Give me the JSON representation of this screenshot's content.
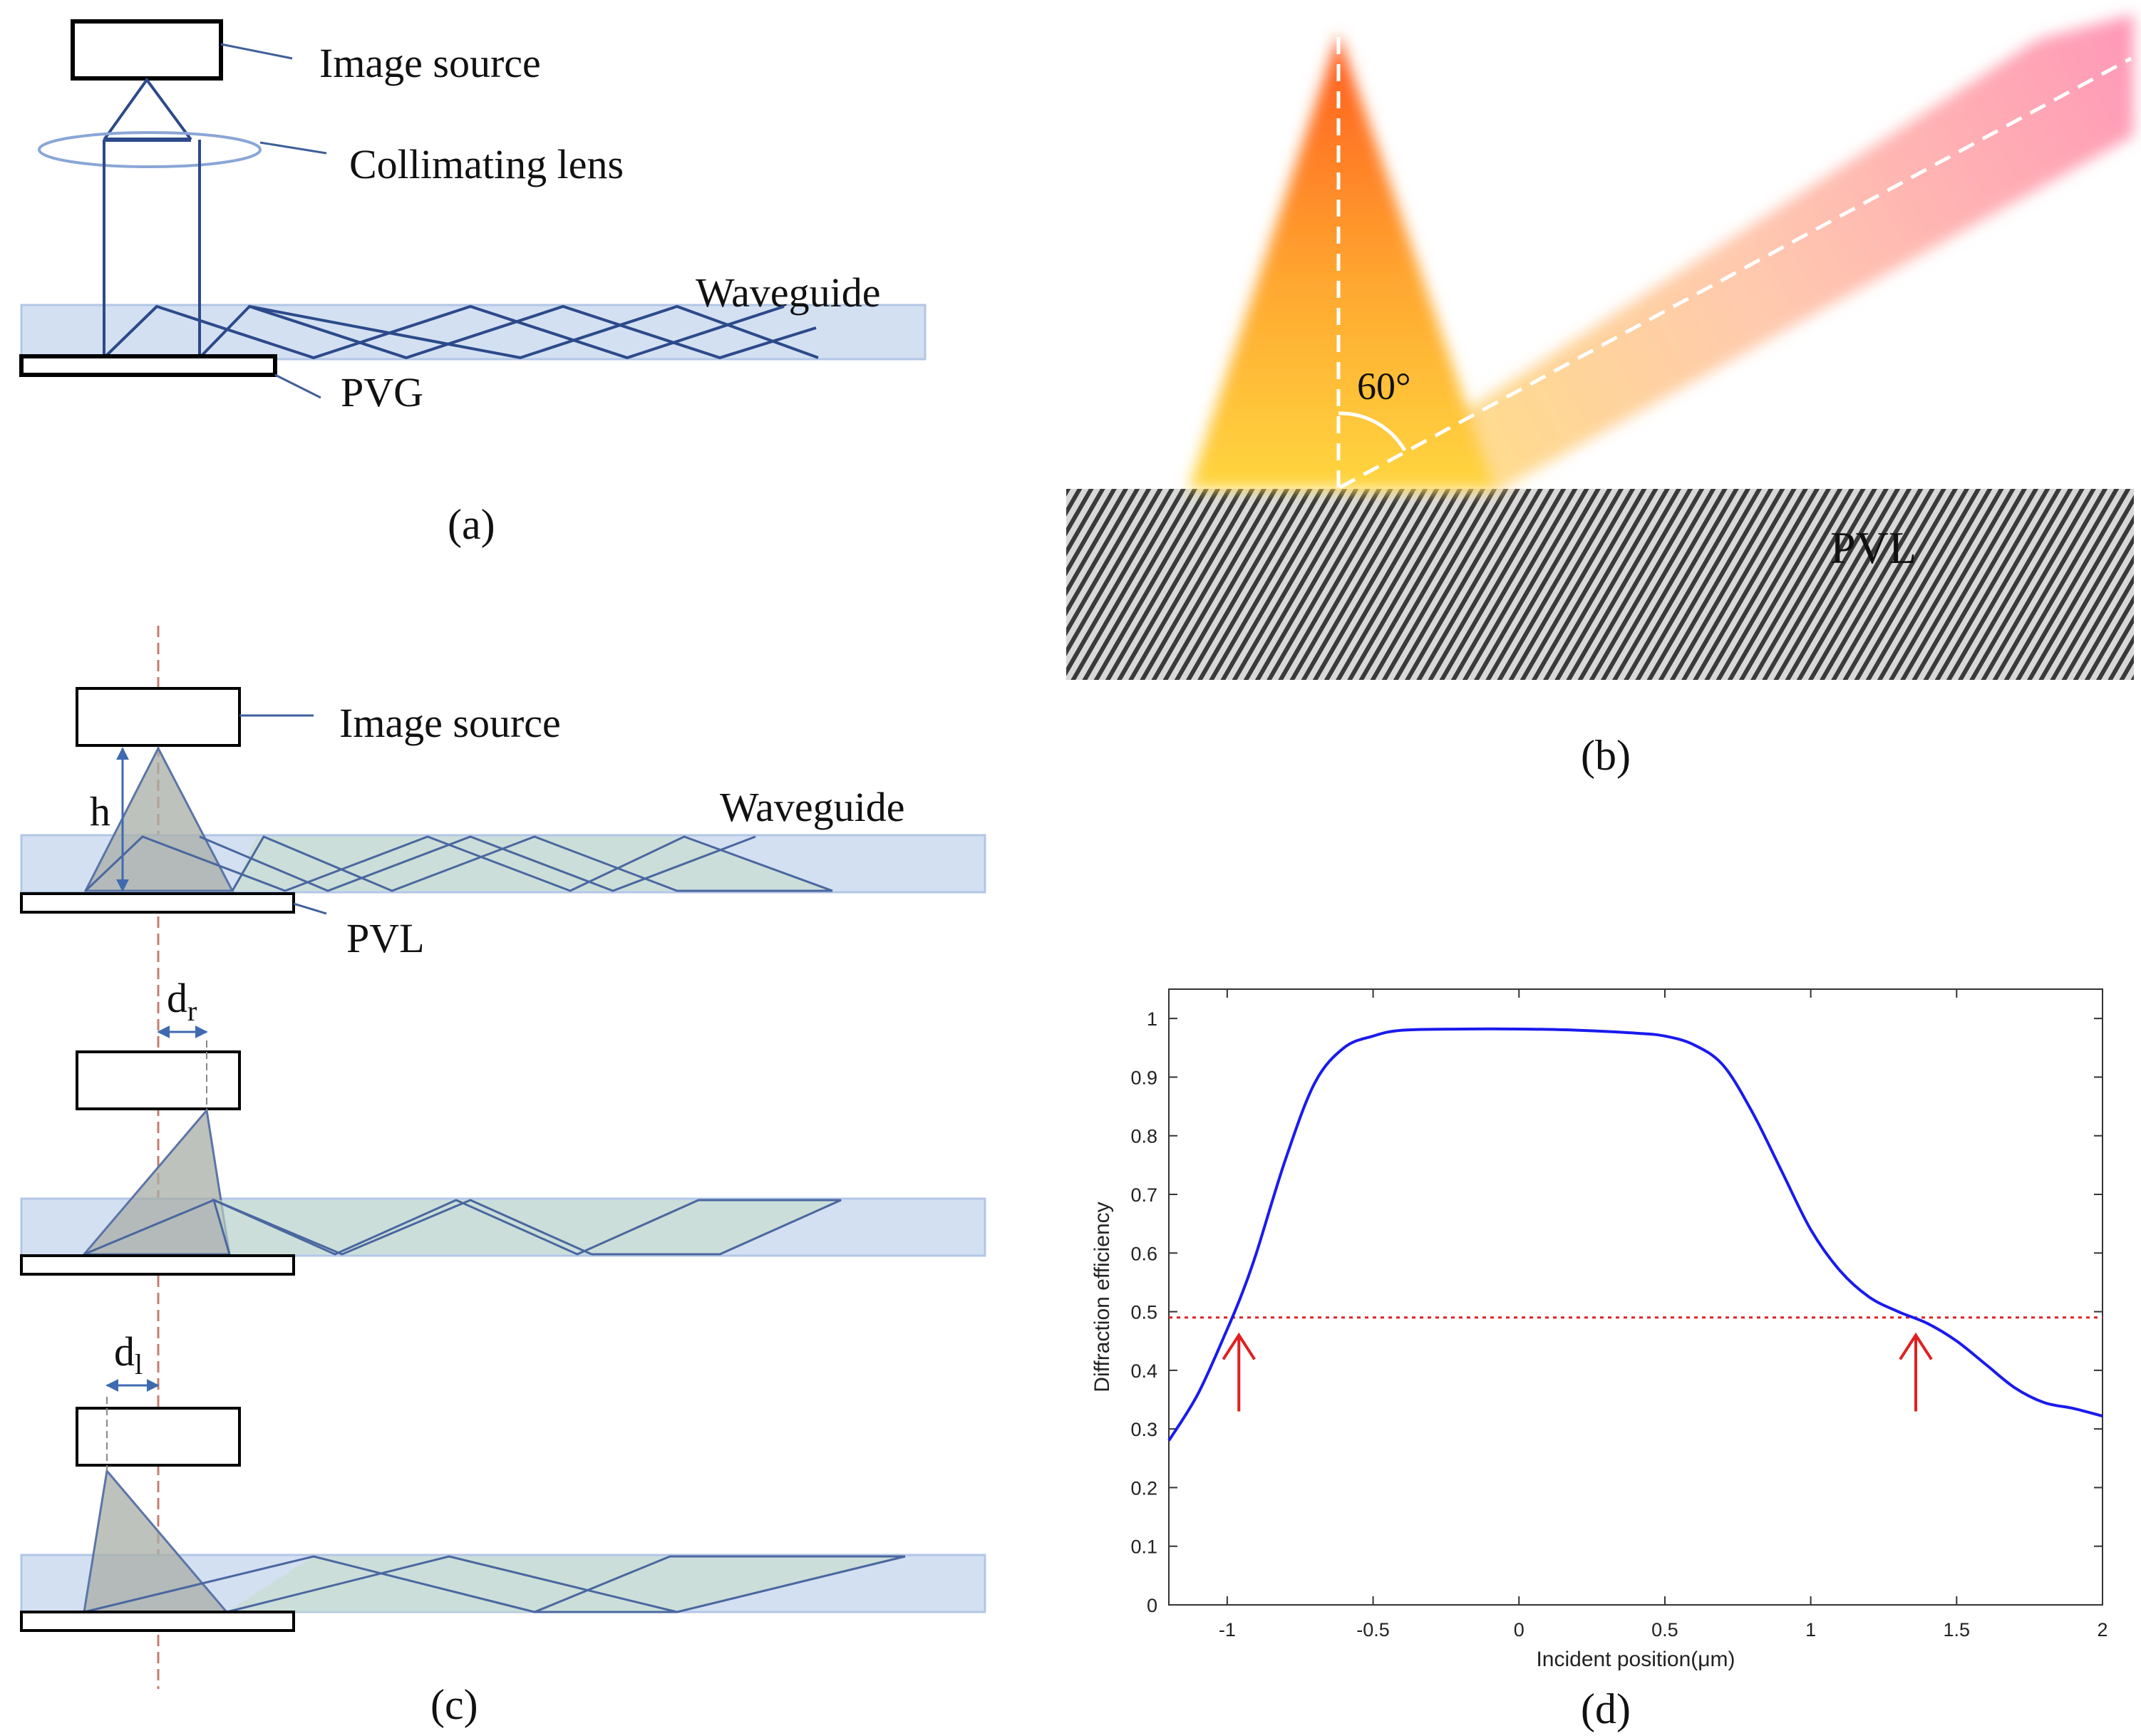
{
  "panel_a": {
    "labels": {
      "image_source": "Image source",
      "collimating_lens": "Collimating lens",
      "waveguide": "Waveguide",
      "pvg": "PVG"
    },
    "caption": "(a)"
  },
  "panel_b": {
    "angle": "60°",
    "grating_label": "PVL",
    "caption": "(b)"
  },
  "panel_c": {
    "labels": {
      "image_source": "Image source",
      "waveguide": "Waveguide",
      "pvl": "PVL",
      "h": "h",
      "d_r_main": "d",
      "d_r_sub": "r",
      "d_l_main": "d",
      "d_l_sub": "l"
    },
    "caption": "(c)"
  },
  "panel_d": {
    "caption": "(d)"
  },
  "colors": {
    "line_blue": "#3f5f9a",
    "waveguide_fill": "#d3e0f2",
    "curve_blue": "#1a1aee",
    "threshold_red": "#e02020"
  },
  "chart_data": {
    "type": "line",
    "title": "",
    "xlabel": "Incident position(μm)",
    "ylabel": "Diffraction efficiency",
    "xlim": [
      -1.2,
      2
    ],
    "ylim": [
      0,
      1.05
    ],
    "xticks": [
      -1,
      -0.5,
      0,
      0.5,
      1,
      1.5,
      2
    ],
    "xtick_labels": [
      "-1",
      "-0.5",
      "0",
      "0.5",
      "1",
      "1.5",
      "2"
    ],
    "yticks": [
      0,
      0.1,
      0.2,
      0.3,
      0.4,
      0.5,
      0.6,
      0.7,
      0.8,
      0.9,
      1
    ],
    "ytick_labels": [
      "0",
      "0.1",
      "0.2",
      "0.3",
      "0.4",
      "0.5",
      "0.6",
      "0.7",
      "0.8",
      "0.9",
      "1"
    ],
    "series": [
      {
        "name": "Diffraction efficiency",
        "x": [
          -1.2,
          -1.1,
          -1.0,
          -0.95,
          -0.9,
          -0.8,
          -0.7,
          -0.6,
          -0.5,
          -0.4,
          -0.2,
          0,
          0.2,
          0.4,
          0.5,
          0.6,
          0.7,
          0.8,
          0.9,
          1.0,
          1.1,
          1.2,
          1.3,
          1.4,
          1.5,
          1.6,
          1.7,
          1.8,
          1.9,
          2.0
        ],
        "y": [
          0.28,
          0.36,
          0.47,
          0.53,
          0.6,
          0.76,
          0.89,
          0.95,
          0.97,
          0.98,
          0.982,
          0.982,
          0.98,
          0.975,
          0.97,
          0.955,
          0.92,
          0.84,
          0.74,
          0.64,
          0.57,
          0.525,
          0.5,
          0.48,
          0.45,
          0.41,
          0.37,
          0.345,
          0.335,
          0.322
        ]
      }
    ],
    "threshold": 0.49,
    "annotations": [
      {
        "type": "arrow",
        "x": -0.96,
        "y_from": 0.33,
        "y_to": 0.46
      },
      {
        "type": "arrow",
        "x": 1.36,
        "y_from": 0.33,
        "y_to": 0.46
      }
    ]
  }
}
